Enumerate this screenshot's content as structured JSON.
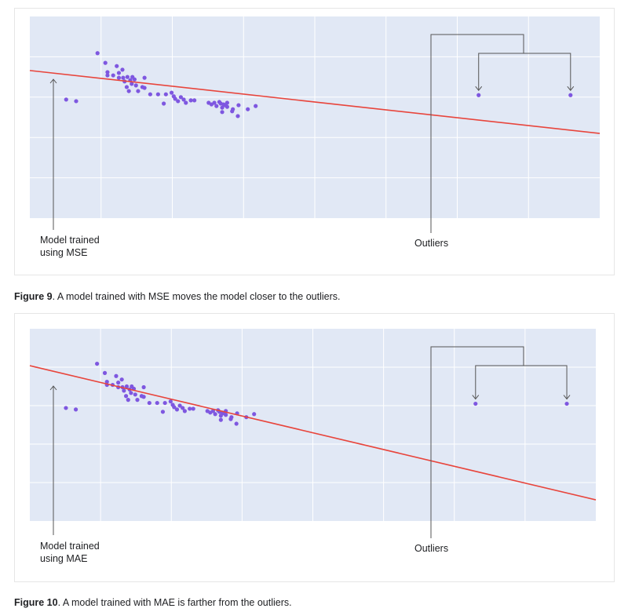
{
  "figures": [
    {
      "caption_label": "Figure 9",
      "caption_text": ". A model trained with MSE moves the model closer to the outliers.",
      "model_label_line1": "Model trained",
      "model_label_line2": "using MSE",
      "outliers_label": "Outliers"
    },
    {
      "caption_label": "Figure 10",
      "caption_text": ". A model trained with MAE is farther from the outliers.",
      "model_label_line1": "Model trained",
      "model_label_line2": "using MAE",
      "outliers_label": "Outliers"
    }
  ],
  "chart_data": [
    {
      "type": "scatter",
      "xlim": [
        0,
        8
      ],
      "ylim": [
        0,
        5
      ],
      "grid": true,
      "background": "#e1e8f5",
      "point_color": "#7e57e0",
      "line_color": "#e8453c",
      "points": [
        [
          0.51,
          2.94
        ],
        [
          0.65,
          2.9
        ],
        [
          0.95,
          4.09
        ],
        [
          1.06,
          3.85
        ],
        [
          1.09,
          3.62
        ],
        [
          1.09,
          3.54
        ],
        [
          1.17,
          3.54
        ],
        [
          1.22,
          3.77
        ],
        [
          1.25,
          3.6
        ],
        [
          1.25,
          3.48
        ],
        [
          1.3,
          3.68
        ],
        [
          1.31,
          3.48
        ],
        [
          1.33,
          3.39
        ],
        [
          1.36,
          3.25
        ],
        [
          1.37,
          3.5
        ],
        [
          1.39,
          3.15
        ],
        [
          1.41,
          3.42
        ],
        [
          1.43,
          3.33
        ],
        [
          1.44,
          3.5
        ],
        [
          1.47,
          3.44
        ],
        [
          1.49,
          3.29
        ],
        [
          1.52,
          3.15
        ],
        [
          1.58,
          3.25
        ],
        [
          1.61,
          3.48
        ],
        [
          1.61,
          3.23
        ],
        [
          1.69,
          3.07
        ],
        [
          1.8,
          3.07
        ],
        [
          1.88,
          2.84
        ],
        [
          1.91,
          3.07
        ],
        [
          1.99,
          3.11
        ],
        [
          2.02,
          3.02
        ],
        [
          2.04,
          2.96
        ],
        [
          2.08,
          2.9
        ],
        [
          2.12,
          3.0
        ],
        [
          2.16,
          2.94
        ],
        [
          2.19,
          2.86
        ],
        [
          2.26,
          2.92
        ],
        [
          2.31,
          2.92
        ],
        [
          2.51,
          2.86
        ],
        [
          2.55,
          2.82
        ],
        [
          2.59,
          2.86
        ],
        [
          2.62,
          2.78
        ],
        [
          2.66,
          2.88
        ],
        [
          2.68,
          2.84
        ],
        [
          2.7,
          2.74
        ],
        [
          2.7,
          2.63
        ],
        [
          2.72,
          2.82
        ],
        [
          2.74,
          2.8
        ],
        [
          2.77,
          2.76
        ],
        [
          2.77,
          2.86
        ],
        [
          2.84,
          2.65
        ],
        [
          2.85,
          2.7
        ],
        [
          2.92,
          2.53
        ],
        [
          2.93,
          2.8
        ],
        [
          3.06,
          2.7
        ],
        [
          3.17,
          2.78
        ],
        [
          6.3,
          3.05
        ],
        [
          7.59,
          3.05
        ]
      ],
      "fit_line": [
        [
          0,
          3.66
        ],
        [
          8,
          2.1
        ]
      ]
    },
    {
      "type": "scatter",
      "xlim": [
        0,
        8
      ],
      "ylim": [
        0,
        5
      ],
      "grid": true,
      "background": "#e1e8f5",
      "point_color": "#7e57e0",
      "line_color": "#e8453c",
      "points": [
        [
          0.51,
          2.94
        ],
        [
          0.65,
          2.9
        ],
        [
          0.95,
          4.09
        ],
        [
          1.06,
          3.85
        ],
        [
          1.09,
          3.62
        ],
        [
          1.09,
          3.54
        ],
        [
          1.17,
          3.54
        ],
        [
          1.22,
          3.77
        ],
        [
          1.25,
          3.6
        ],
        [
          1.25,
          3.48
        ],
        [
          1.3,
          3.68
        ],
        [
          1.31,
          3.48
        ],
        [
          1.33,
          3.39
        ],
        [
          1.36,
          3.25
        ],
        [
          1.37,
          3.5
        ],
        [
          1.39,
          3.15
        ],
        [
          1.41,
          3.42
        ],
        [
          1.43,
          3.33
        ],
        [
          1.44,
          3.5
        ],
        [
          1.47,
          3.44
        ],
        [
          1.49,
          3.29
        ],
        [
          1.52,
          3.15
        ],
        [
          1.58,
          3.25
        ],
        [
          1.61,
          3.48
        ],
        [
          1.61,
          3.23
        ],
        [
          1.69,
          3.07
        ],
        [
          1.8,
          3.07
        ],
        [
          1.88,
          2.84
        ],
        [
          1.91,
          3.07
        ],
        [
          1.99,
          3.11
        ],
        [
          2.02,
          3.02
        ],
        [
          2.04,
          2.96
        ],
        [
          2.08,
          2.9
        ],
        [
          2.12,
          3.0
        ],
        [
          2.16,
          2.94
        ],
        [
          2.19,
          2.86
        ],
        [
          2.26,
          2.92
        ],
        [
          2.31,
          2.92
        ],
        [
          2.51,
          2.86
        ],
        [
          2.55,
          2.82
        ],
        [
          2.59,
          2.86
        ],
        [
          2.62,
          2.78
        ],
        [
          2.66,
          2.88
        ],
        [
          2.68,
          2.84
        ],
        [
          2.7,
          2.74
        ],
        [
          2.7,
          2.63
        ],
        [
          2.72,
          2.82
        ],
        [
          2.74,
          2.8
        ],
        [
          2.77,
          2.76
        ],
        [
          2.77,
          2.86
        ],
        [
          2.84,
          2.65
        ],
        [
          2.85,
          2.7
        ],
        [
          2.92,
          2.53
        ],
        [
          2.93,
          2.8
        ],
        [
          3.06,
          2.7
        ],
        [
          3.17,
          2.78
        ],
        [
          6.3,
          3.05
        ],
        [
          7.59,
          3.05
        ]
      ],
      "fit_line": [
        [
          0,
          4.04
        ],
        [
          8,
          0.55
        ]
      ]
    }
  ]
}
